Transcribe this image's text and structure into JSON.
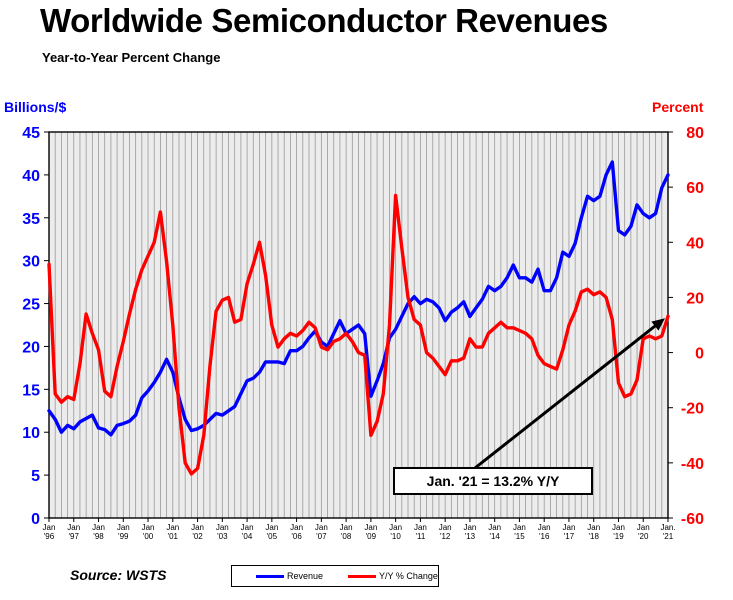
{
  "title": "Worldwide Semiconductor Revenues",
  "subtitle": "Year-to-Year Percent Change",
  "source": "Source: WSTS",
  "chart_data": {
    "type": "line",
    "title": "Worldwide Semiconductor Revenues",
    "subtitle": "Year-to-Year Percent Change",
    "left_axis": {
      "label": "Billions/$",
      "min": 0,
      "max": 45,
      "ticks": [
        "0",
        "5",
        "10",
        "15",
        "20",
        "25",
        "30",
        "35",
        "40",
        "45"
      ],
      "color": "#0000ff"
    },
    "right_axis": {
      "label": "Percent",
      "min": -60,
      "max": 80,
      "ticks": [
        "-60",
        "-40",
        "-20",
        "0",
        "20",
        "40",
        "60",
        "80"
      ],
      "color": "#ff0000"
    },
    "x_axis": {
      "start_year": 1996,
      "end_year": 2021,
      "categories": [
        {
          "month": "Jan",
          "year": "'96"
        },
        {
          "month": "Jan",
          "year": "'97"
        },
        {
          "month": "Jan",
          "year": "'98"
        },
        {
          "month": "Jan",
          "year": "'99"
        },
        {
          "month": "Jan",
          "year": "'00"
        },
        {
          "month": "Jan",
          "year": "'01"
        },
        {
          "month": "Jan",
          "year": "'02"
        },
        {
          "month": "Jan",
          "year": "'03"
        },
        {
          "month": "Jan",
          "year": "'04"
        },
        {
          "month": "Jan",
          "year": "'05"
        },
        {
          "month": "Jan",
          "year": "'06"
        },
        {
          "month": "Jan",
          "year": "'07"
        },
        {
          "month": "Jan",
          "year": "'08"
        },
        {
          "month": "Jan",
          "year": "'09"
        },
        {
          "month": "Jan",
          "year": "'10"
        },
        {
          "month": "Jan",
          "year": "'11"
        },
        {
          "month": "Jan",
          "year": "'12"
        },
        {
          "month": "Jan",
          "year": "'13"
        },
        {
          "month": "Jan",
          "year": "'14"
        },
        {
          "month": "Jan",
          "year": "'15"
        },
        {
          "month": "Jan",
          "year": "'16"
        },
        {
          "month": "Jan",
          "year": "'17"
        },
        {
          "month": "Jan",
          "year": "'18"
        },
        {
          "month": "Jan",
          "year": "'19"
        },
        {
          "month": "Jan",
          "year": "'20"
        },
        {
          "month": "Jan.",
          "year": "'21"
        }
      ]
    },
    "grid": true,
    "legend_position": "bottom-center",
    "series": [
      {
        "name": "Revenue",
        "axis": "left",
        "color": "#0000ff",
        "points": [
          [
            1996.0,
            12.5
          ],
          [
            1996.25,
            11.5
          ],
          [
            1996.5,
            10.0
          ],
          [
            1996.75,
            10.8
          ],
          [
            1997.0,
            10.4
          ],
          [
            1997.25,
            11.2
          ],
          [
            1997.5,
            11.6
          ],
          [
            1997.75,
            12.0
          ],
          [
            1998.0,
            10.5
          ],
          [
            1998.25,
            10.3
          ],
          [
            1998.5,
            9.7
          ],
          [
            1998.75,
            10.8
          ],
          [
            1999.0,
            11.0
          ],
          [
            1999.25,
            11.3
          ],
          [
            1999.5,
            12.0
          ],
          [
            1999.75,
            14.0
          ],
          [
            2000.0,
            14.8
          ],
          [
            2000.25,
            15.8
          ],
          [
            2000.5,
            17.0
          ],
          [
            2000.75,
            18.5
          ],
          [
            2001.0,
            17.0
          ],
          [
            2001.25,
            14.0
          ],
          [
            2001.5,
            11.5
          ],
          [
            2001.75,
            10.2
          ],
          [
            2002.0,
            10.4
          ],
          [
            2002.25,
            10.8
          ],
          [
            2002.5,
            11.5
          ],
          [
            2002.75,
            12.2
          ],
          [
            2003.0,
            12.0
          ],
          [
            2003.25,
            12.5
          ],
          [
            2003.5,
            13.0
          ],
          [
            2003.75,
            14.5
          ],
          [
            2004.0,
            16.0
          ],
          [
            2004.25,
            16.3
          ],
          [
            2004.5,
            17.0
          ],
          [
            2004.75,
            18.2
          ],
          [
            2005.0,
            18.2
          ],
          [
            2005.25,
            18.2
          ],
          [
            2005.5,
            18.0
          ],
          [
            2005.75,
            19.5
          ],
          [
            2006.0,
            19.5
          ],
          [
            2006.25,
            20.0
          ],
          [
            2006.5,
            21.0
          ],
          [
            2006.75,
            21.8
          ],
          [
            2007.0,
            20.5
          ],
          [
            2007.25,
            20.0
          ],
          [
            2007.5,
            21.5
          ],
          [
            2007.75,
            23.0
          ],
          [
            2008.0,
            21.5
          ],
          [
            2008.25,
            22.0
          ],
          [
            2008.5,
            22.5
          ],
          [
            2008.75,
            21.5
          ],
          [
            2009.0,
            14.2
          ],
          [
            2009.25,
            16.0
          ],
          [
            2009.5,
            18.0
          ],
          [
            2009.75,
            21.0
          ],
          [
            2010.0,
            22.0
          ],
          [
            2010.25,
            23.5
          ],
          [
            2010.5,
            25.0
          ],
          [
            2010.75,
            25.8
          ],
          [
            2011.0,
            25.0
          ],
          [
            2011.25,
            25.5
          ],
          [
            2011.5,
            25.2
          ],
          [
            2011.75,
            24.5
          ],
          [
            2012.0,
            23.0
          ],
          [
            2012.25,
            24.0
          ],
          [
            2012.5,
            24.5
          ],
          [
            2012.75,
            25.2
          ],
          [
            2013.0,
            23.5
          ],
          [
            2013.25,
            24.5
          ],
          [
            2013.5,
            25.5
          ],
          [
            2013.75,
            27.0
          ],
          [
            2014.0,
            26.5
          ],
          [
            2014.25,
            27.0
          ],
          [
            2014.5,
            28.0
          ],
          [
            2014.75,
            29.5
          ],
          [
            2015.0,
            28.0
          ],
          [
            2015.25,
            28.0
          ],
          [
            2015.5,
            27.5
          ],
          [
            2015.75,
            29.0
          ],
          [
            2016.0,
            26.5
          ],
          [
            2016.25,
            26.5
          ],
          [
            2016.5,
            28.0
          ],
          [
            2016.75,
            31.0
          ],
          [
            2017.0,
            30.5
          ],
          [
            2017.25,
            32.0
          ],
          [
            2017.5,
            35.0
          ],
          [
            2017.75,
            37.5
          ],
          [
            2018.0,
            37.0
          ],
          [
            2018.25,
            37.5
          ],
          [
            2018.5,
            40.0
          ],
          [
            2018.75,
            41.5
          ],
          [
            2019.0,
            33.5
          ],
          [
            2019.25,
            33.0
          ],
          [
            2019.5,
            34.0
          ],
          [
            2019.75,
            36.5
          ],
          [
            2020.0,
            35.5
          ],
          [
            2020.25,
            35.0
          ],
          [
            2020.5,
            35.5
          ],
          [
            2020.75,
            38.5
          ],
          [
            2021.0,
            40.0
          ]
        ]
      },
      {
        "name": "Y/Y % Change",
        "axis": "right",
        "color": "#ff0000",
        "points": [
          [
            1996.0,
            32.0
          ],
          [
            1996.25,
            -15.0
          ],
          [
            1996.5,
            -18.0
          ],
          [
            1996.75,
            -16.0
          ],
          [
            1997.0,
            -17.0
          ],
          [
            1997.25,
            -4.0
          ],
          [
            1997.5,
            14.0
          ],
          [
            1997.75,
            7.0
          ],
          [
            1998.0,
            1.0
          ],
          [
            1998.25,
            -14.0
          ],
          [
            1998.5,
            -16.0
          ],
          [
            1998.75,
            -5.0
          ],
          [
            1999.0,
            4.0
          ],
          [
            1999.25,
            14.0
          ],
          [
            1999.5,
            23.0
          ],
          [
            1999.75,
            30.0
          ],
          [
            2000.0,
            35.0
          ],
          [
            2000.25,
            40.0
          ],
          [
            2000.5,
            51.0
          ],
          [
            2000.75,
            33.0
          ],
          [
            2001.0,
            10.0
          ],
          [
            2001.25,
            -20.0
          ],
          [
            2001.5,
            -40.0
          ],
          [
            2001.75,
            -44.0
          ],
          [
            2002.0,
            -42.0
          ],
          [
            2002.25,
            -30.0
          ],
          [
            2002.5,
            -5.0
          ],
          [
            2002.75,
            15.0
          ],
          [
            2003.0,
            19.0
          ],
          [
            2003.25,
            20.0
          ],
          [
            2003.5,
            11.0
          ],
          [
            2003.75,
            12.0
          ],
          [
            2004.0,
            25.0
          ],
          [
            2004.25,
            32.0
          ],
          [
            2004.5,
            40.0
          ],
          [
            2004.75,
            28.0
          ],
          [
            2005.0,
            10.0
          ],
          [
            2005.25,
            2.0
          ],
          [
            2005.5,
            5.0
          ],
          [
            2005.75,
            7.0
          ],
          [
            2006.0,
            6.0
          ],
          [
            2006.25,
            8.0
          ],
          [
            2006.5,
            11.0
          ],
          [
            2006.75,
            9.0
          ],
          [
            2007.0,
            2.0
          ],
          [
            2007.25,
            1.0
          ],
          [
            2007.5,
            4.0
          ],
          [
            2007.75,
            5.0
          ],
          [
            2008.0,
            7.0
          ],
          [
            2008.25,
            4.0
          ],
          [
            2008.5,
            0.0
          ],
          [
            2008.75,
            -1.0
          ],
          [
            2009.0,
            -30.0
          ],
          [
            2009.25,
            -25.0
          ],
          [
            2009.5,
            -15.0
          ],
          [
            2009.75,
            10.0
          ],
          [
            2010.0,
            57.0
          ],
          [
            2010.25,
            38.0
          ],
          [
            2010.5,
            20.0
          ],
          [
            2010.75,
            12.0
          ],
          [
            2011.0,
            10.0
          ],
          [
            2011.25,
            0.0
          ],
          [
            2011.5,
            -2.0
          ],
          [
            2011.75,
            -5.0
          ],
          [
            2012.0,
            -8.0
          ],
          [
            2012.25,
            -3.0
          ],
          [
            2012.5,
            -3.0
          ],
          [
            2012.75,
            -2.0
          ],
          [
            2013.0,
            5.0
          ],
          [
            2013.25,
            2.0
          ],
          [
            2013.5,
            2.0
          ],
          [
            2013.75,
            7.0
          ],
          [
            2014.0,
            9.0
          ],
          [
            2014.25,
            11.0
          ],
          [
            2014.5,
            9.0
          ],
          [
            2014.75,
            9.0
          ],
          [
            2015.0,
            8.0
          ],
          [
            2015.25,
            7.0
          ],
          [
            2015.5,
            5.0
          ],
          [
            2015.75,
            -1.0
          ],
          [
            2016.0,
            -4.0
          ],
          [
            2016.25,
            -5.0
          ],
          [
            2016.5,
            -6.0
          ],
          [
            2016.75,
            1.0
          ],
          [
            2017.0,
            10.0
          ],
          [
            2017.25,
            15.0
          ],
          [
            2017.5,
            22.0
          ],
          [
            2017.75,
            23.0
          ],
          [
            2018.0,
            21.0
          ],
          [
            2018.25,
            22.0
          ],
          [
            2018.5,
            20.0
          ],
          [
            2018.75,
            12.0
          ],
          [
            2019.0,
            -11.0
          ],
          [
            2019.25,
            -16.0
          ],
          [
            2019.5,
            -15.0
          ],
          [
            2019.75,
            -10.0
          ],
          [
            2020.0,
            5.0
          ],
          [
            2020.25,
            6.0
          ],
          [
            2020.5,
            5.0
          ],
          [
            2020.75,
            6.0
          ],
          [
            2021.0,
            13.2
          ]
        ]
      }
    ],
    "annotations": [
      {
        "text": "Jan. '21 = 13.2% Y/Y",
        "points_to": {
          "x": 2021.0,
          "y": 13.2,
          "axis": "right"
        }
      }
    ]
  },
  "legend": {
    "revenue_label": "Revenue",
    "change_label": "Y/Y % Change"
  },
  "colors": {
    "revenue": "#0000ff",
    "change": "#ff0000",
    "grid": "#999999",
    "plot_background": "#ececec"
  }
}
